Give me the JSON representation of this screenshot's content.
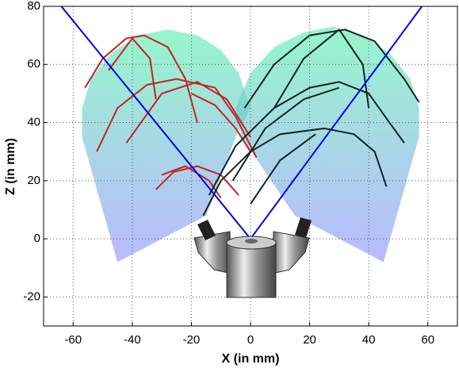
{
  "chart_data": {
    "type": "line",
    "xlabel": "X (in mm)",
    "ylabel": "Z (in mm)",
    "xlim": [
      -70,
      70
    ],
    "ylim": [
      -30,
      80
    ],
    "xticks": [
      -60,
      -40,
      -20,
      0,
      20,
      40,
      60
    ],
    "yticks": [
      -20,
      0,
      20,
      40,
      60,
      80
    ],
    "grid": true,
    "regions": [
      {
        "colors": [
          "#4ff0a8",
          "#8c8cff"
        ],
        "x": [
          -45,
          -57,
          -57,
          -54,
          -47,
          -38,
          -28,
          -18,
          -10,
          -4,
          0,
          -5,
          -15
        ],
        "y": [
          -8,
          35,
          45,
          55,
          64,
          70,
          72,
          70,
          65,
          57,
          45,
          35,
          8
        ]
      },
      {
        "colors": [
          "#4ff0a8",
          "#8c8cff"
        ],
        "x": [
          45,
          57,
          57,
          54,
          47,
          38,
          28,
          18,
          8,
          0,
          -5,
          -3,
          15
        ],
        "y": [
          -8,
          35,
          45,
          55,
          64,
          70,
          73,
          71,
          66,
          57,
          45,
          35,
          8
        ]
      }
    ],
    "series": [
      {
        "color": "#c42424",
        "x": [
          -56,
          -50,
          -42,
          -36,
          -28,
          -22,
          -18
        ],
        "y": [
          52,
          62,
          69,
          70,
          66,
          55,
          40
        ]
      },
      {
        "color": "#c42424",
        "x": [
          -48,
          -40,
          -34,
          -32
        ],
        "y": [
          58,
          69,
          62,
          48
        ]
      },
      {
        "color": "#c42424",
        "x": [
          -52,
          -45,
          -35,
          -25,
          -12,
          -5,
          2
        ],
        "y": [
          30,
          45,
          53,
          55,
          52,
          42,
          28
        ]
      },
      {
        "color": "#c42424",
        "x": [
          -42,
          -30,
          -18,
          -8,
          0
        ],
        "y": [
          33,
          50,
          54,
          48,
          35
        ]
      },
      {
        "color": "#c42424",
        "x": [
          -32,
          -26,
          -18,
          -10,
          -4
        ],
        "y": [
          17,
          23,
          25,
          22,
          15
        ]
      },
      {
        "color": "#c42424",
        "x": [
          -30,
          -22,
          -14,
          -10
        ],
        "y": [
          22,
          25,
          20,
          14
        ]
      },
      {
        "color": "#c42424",
        "x": [
          -20,
          -12,
          -5,
          0
        ],
        "y": [
          50,
          46,
          38,
          30
        ]
      },
      {
        "color": "#102424",
        "x": [
          -2,
          8,
          20,
          32,
          42,
          52,
          57
        ],
        "y": [
          45,
          60,
          70,
          72,
          68,
          55,
          47
        ]
      },
      {
        "color": "#102424",
        "x": [
          8,
          18,
          30,
          38,
          40
        ],
        "y": [
          45,
          62,
          72,
          60,
          45
        ]
      },
      {
        "color": "#102424",
        "x": [
          -14,
          -5,
          8,
          20,
          30,
          40,
          47,
          52
        ],
        "y": [
          15,
          32,
          45,
          52,
          54,
          50,
          40,
          33
        ]
      },
      {
        "color": "#102424",
        "x": [
          -6,
          5,
          18,
          30
        ],
        "y": [
          20,
          38,
          48,
          52
        ]
      },
      {
        "color": "#102424",
        "x": [
          -16,
          -10,
          0,
          10,
          25,
          35,
          42,
          46
        ],
        "y": [
          8,
          20,
          30,
          36,
          38,
          36,
          30,
          18
        ]
      },
      {
        "color": "#102424",
        "x": [
          0,
          10,
          22
        ],
        "y": [
          12,
          27,
          36
        ]
      },
      {
        "color": "#0000dd",
        "x": [
          -64,
          0,
          58
        ],
        "y": [
          80,
          0,
          80
        ]
      }
    ]
  }
}
